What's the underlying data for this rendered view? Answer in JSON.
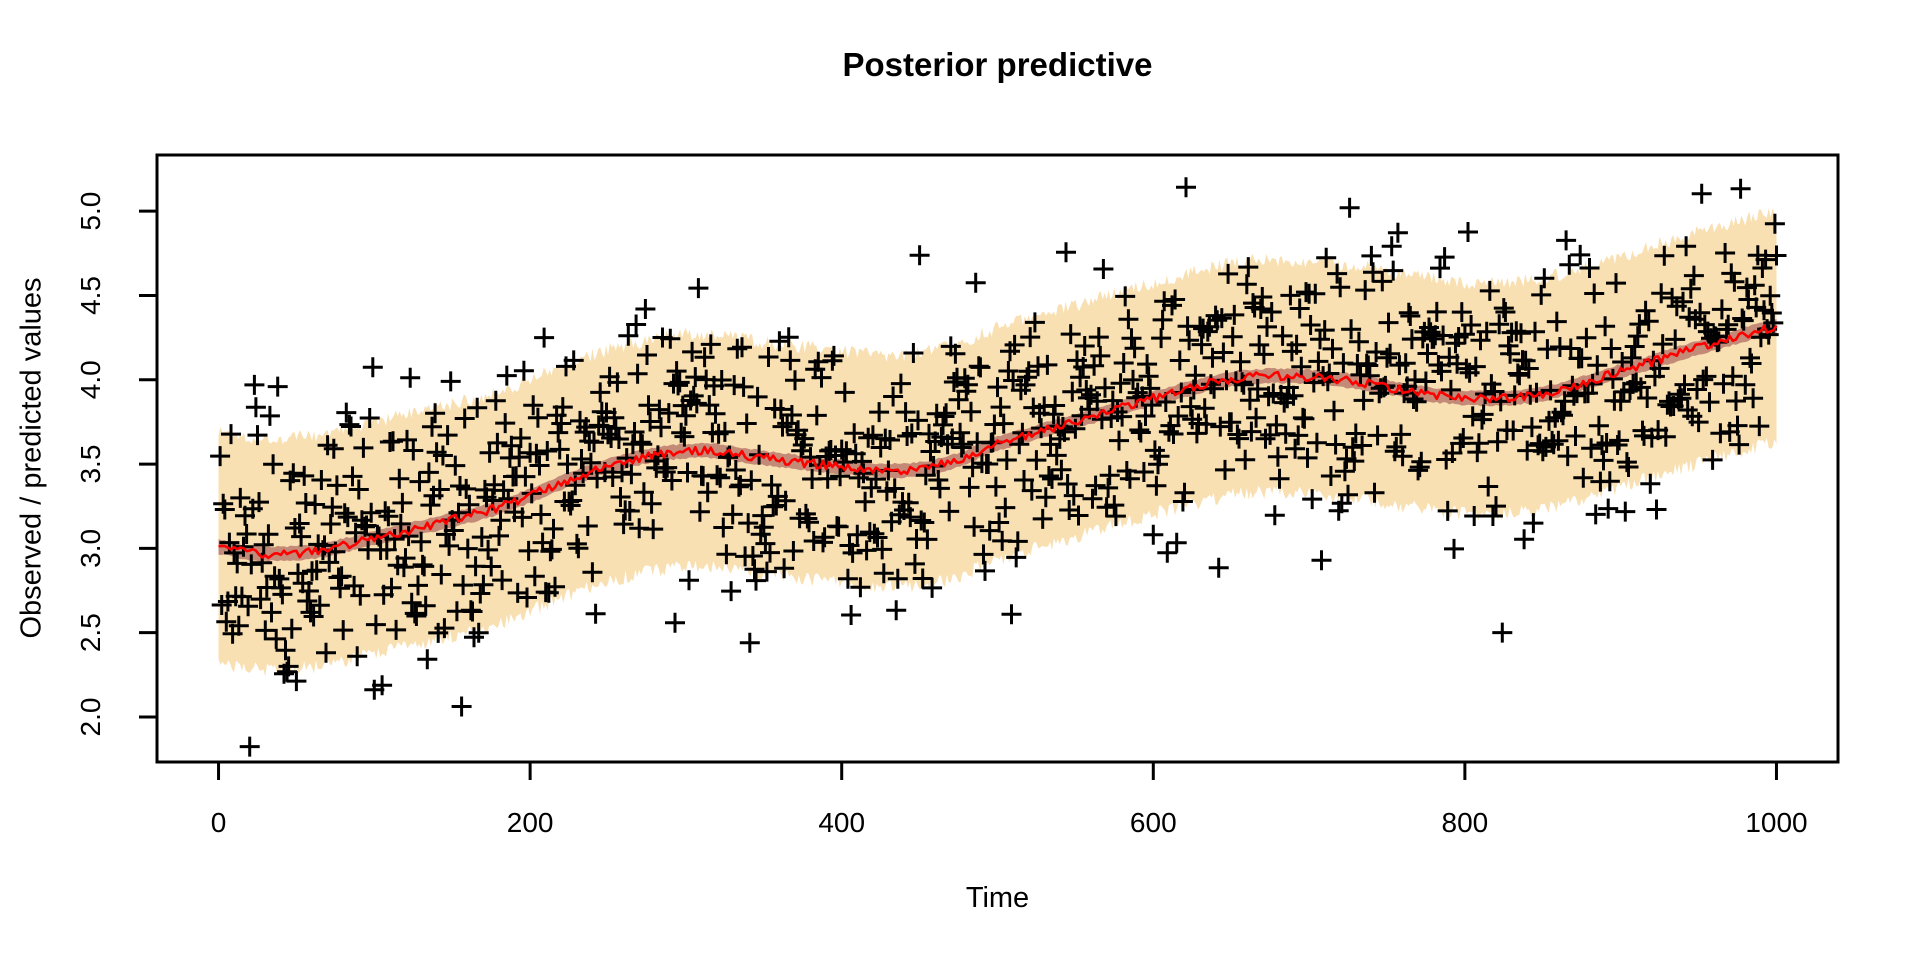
{
  "figure": {
    "title": "Posterior predictive",
    "background_color": "#FFFFFF"
  },
  "chart_data": {
    "type": "scatter",
    "title": "Posterior predictive",
    "xlabel": "Time",
    "ylabel": "Observed / predicted values",
    "grid": false,
    "legend": null,
    "x_ticks": [
      0,
      200,
      400,
      600,
      800,
      1000
    ],
    "x_tick_labels": [
      "0",
      "200",
      "400",
      "600",
      "800",
      "1000"
    ],
    "y_ticks": [
      2.0,
      2.5,
      3.0,
      3.5,
      4.0,
      4.5,
      5.0
    ],
    "y_tick_labels": [
      "2.0",
      "2.5",
      "3.0",
      "3.5",
      "4.0",
      "4.5",
      "5.0"
    ],
    "x_range": [
      -39.5,
      1039.5
    ],
    "y_range": [
      1.733,
      5.333
    ],
    "axis_color": "#000000",
    "mean_trend": {
      "name": "posterior predictive mean line",
      "color": "#FE0000",
      "line_width": 2.6,
      "jitter": 0.05,
      "points": [
        [
          0,
          3.01
        ],
        [
          25,
          2.97
        ],
        [
          60,
          2.98
        ],
        [
          100,
          3.06
        ],
        [
          150,
          3.17
        ],
        [
          185,
          3.26
        ],
        [
          250,
          3.49
        ],
        [
          305,
          3.58
        ],
        [
          355,
          3.53
        ],
        [
          430,
          3.46
        ],
        [
          470,
          3.51
        ],
        [
          500,
          3.62
        ],
        [
          560,
          3.78
        ],
        [
          620,
          3.94
        ],
        [
          665,
          4.02
        ],
        [
          720,
          4.0
        ],
        [
          790,
          3.9
        ],
        [
          845,
          3.91
        ],
        [
          900,
          4.05
        ],
        [
          950,
          4.19
        ],
        [
          1000,
          4.32
        ]
      ]
    },
    "outer_band": {
      "name": "posterior predictive interval",
      "color": "#F9E0B2",
      "half_width": 0.645,
      "fringe": 0.085,
      "t_start": 0,
      "t_end": 1000
    },
    "inner_band": {
      "name": "mean credible band",
      "color": "#C48A78",
      "half_width": 0.042,
      "jitter": 0.012
    },
    "observations": {
      "name": "observed values",
      "marker": "+",
      "color": "#000000",
      "n": 1000,
      "t_start": 1,
      "t_end": 1000,
      "noise_sd": 0.42,
      "seed": 1337,
      "marker_size": 21,
      "stroke_width": 3
    }
  }
}
